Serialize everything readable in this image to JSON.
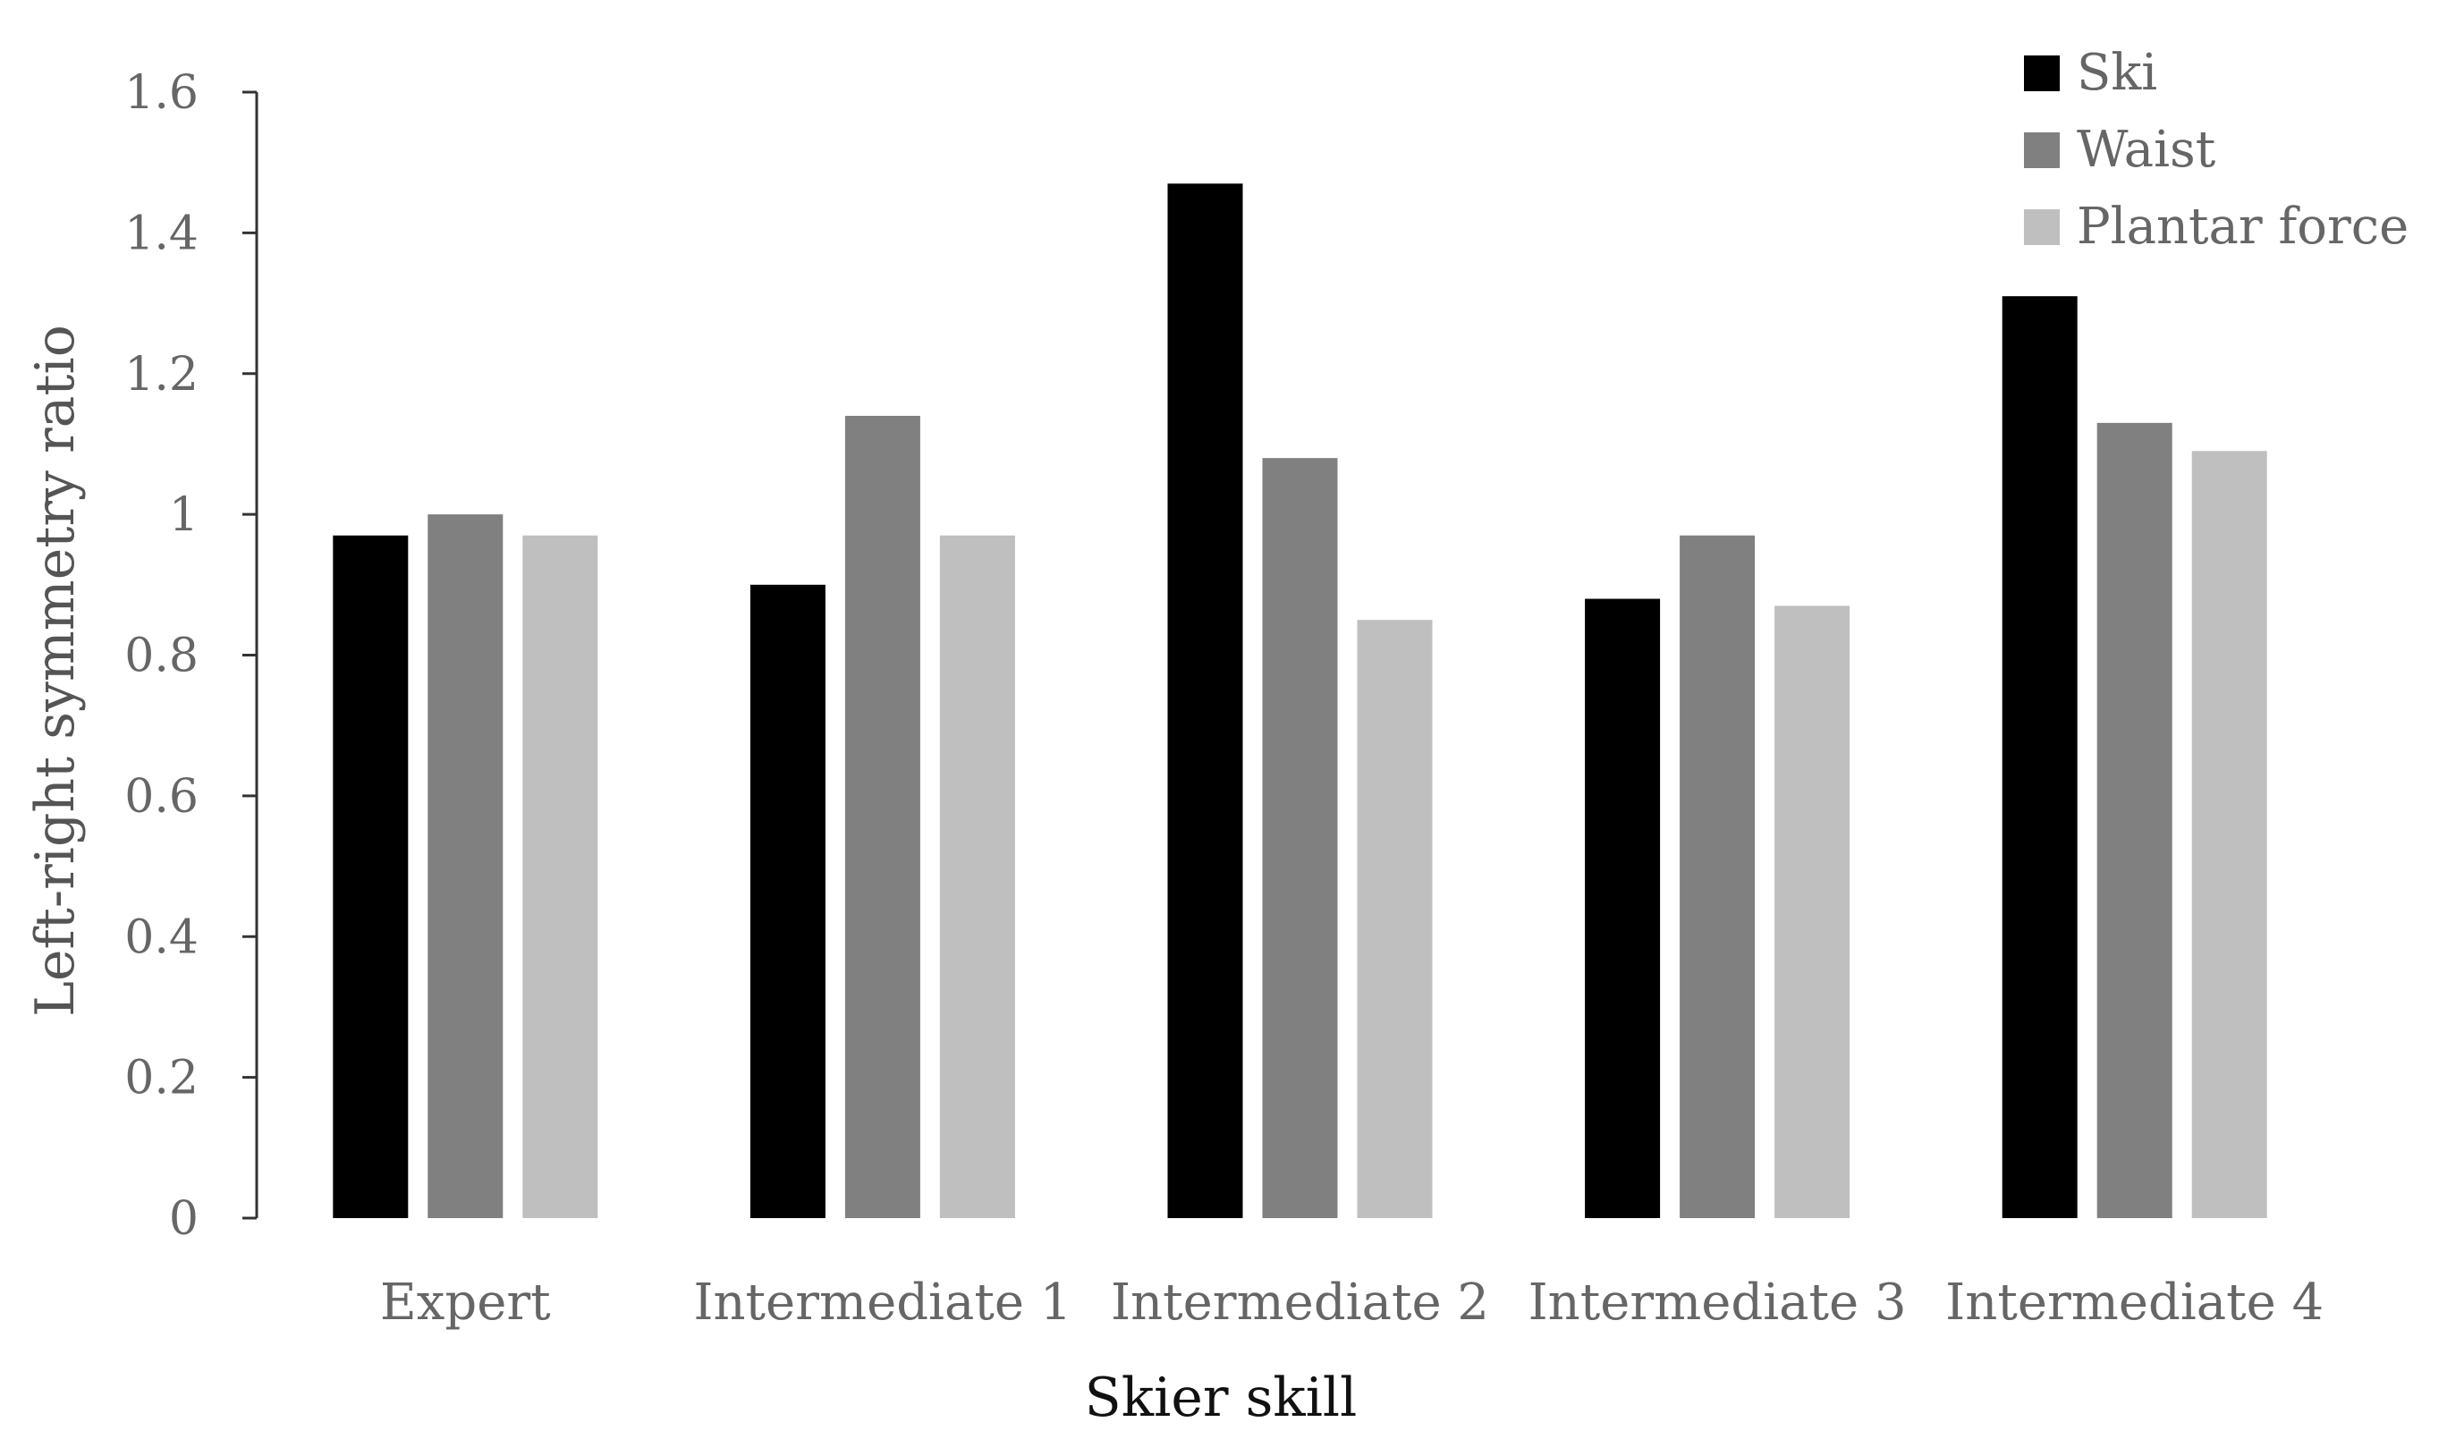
{
  "chart_data": {
    "type": "bar",
    "categories": [
      "Expert",
      "Intermediate 1",
      "Intermediate 2",
      "Intermediate 3",
      "Intermediate 4"
    ],
    "series": [
      {
        "name": "Ski",
        "color": "#000000",
        "values": [
          0.97,
          0.9,
          1.47,
          0.88,
          1.31
        ]
      },
      {
        "name": "Waist",
        "color": "#808080",
        "values": [
          1.0,
          1.14,
          1.08,
          0.97,
          1.13
        ]
      },
      {
        "name": "Plantar force",
        "color": "#bfbfbf",
        "values": [
          0.97,
          0.97,
          0.85,
          0.87,
          1.09
        ]
      }
    ],
    "xlabel": "Skier skill",
    "ylabel": "Left-right symmetry ratio",
    "ylim": [
      0,
      1.6
    ],
    "yticks": [
      0,
      0.2,
      0.4,
      0.6,
      0.8,
      1,
      1.2,
      1.4,
      1.6
    ],
    "ytick_labels": [
      "0",
      "0.2",
      "0.4",
      "0.6",
      "0.8",
      "1",
      "1.2",
      "1.4",
      "1.6"
    ],
    "grid": false,
    "legend_position": "top-right"
  }
}
